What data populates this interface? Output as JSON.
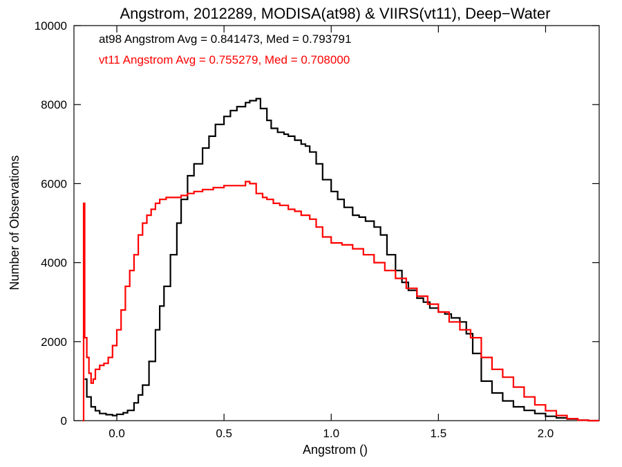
{
  "chart_data": {
    "type": "line",
    "title": "Angstrom, 2012289, MODISA(at98) & VIIRS(vt11), Deep−Water",
    "xlabel": "Angstrom ()",
    "ylabel": "Number of Observations",
    "xlim": [
      -0.2,
      2.25
    ],
    "ylim": [
      0,
      10000
    ],
    "x_ticks": [
      0.0,
      0.5,
      1.0,
      1.5,
      2.0
    ],
    "x_tick_labels": [
      "0.0",
      "0.5",
      "1.0",
      "1.5",
      "2.0"
    ],
    "y_ticks": [
      0,
      2000,
      4000,
      6000,
      8000,
      10000
    ],
    "y_tick_labels": [
      "0",
      "2000",
      "4000",
      "6000",
      "8000",
      "10000"
    ],
    "grid": false,
    "step": true,
    "legend_position": "top-left",
    "series": [
      {
        "name": "at98",
        "color": "#000000",
        "annotation": "at98 Angstrom Avg = 0.841473, Med = 0.793791",
        "x": [
          -0.15,
          -0.14,
          -0.12,
          -0.1,
          -0.08,
          -0.05,
          -0.02,
          0.0,
          0.03,
          0.05,
          0.08,
          0.1,
          0.12,
          0.15,
          0.18,
          0.2,
          0.22,
          0.25,
          0.28,
          0.3,
          0.33,
          0.36,
          0.4,
          0.43,
          0.46,
          0.5,
          0.53,
          0.56,
          0.6,
          0.62,
          0.65,
          0.67,
          0.7,
          0.72,
          0.75,
          0.78,
          0.8,
          0.83,
          0.86,
          0.88,
          0.9,
          0.93,
          0.96,
          1.0,
          1.03,
          1.06,
          1.1,
          1.13,
          1.16,
          1.2,
          1.23,
          1.26,
          1.3,
          1.33,
          1.36,
          1.4,
          1.43,
          1.46,
          1.5,
          1.53,
          1.56,
          1.6,
          1.63,
          1.66,
          1.7,
          1.75,
          1.8,
          1.85,
          1.9,
          1.95,
          2.0,
          2.05,
          2.1,
          2.15,
          2.2,
          2.25
        ],
        "y": [
          1050,
          600,
          350,
          250,
          180,
          150,
          130,
          160,
          200,
          260,
          450,
          650,
          900,
          1500,
          2300,
          2900,
          3400,
          4200,
          5000,
          5600,
          6200,
          6500,
          6900,
          7200,
          7500,
          7700,
          7850,
          7950,
          8050,
          8100,
          8150,
          7900,
          7600,
          7400,
          7300,
          7250,
          7200,
          7100,
          7000,
          6950,
          6800,
          6500,
          6100,
          5800,
          5600,
          5400,
          5200,
          5150,
          5050,
          4900,
          4700,
          4200,
          3800,
          3500,
          3300,
          3100,
          3000,
          2850,
          2750,
          2700,
          2600,
          2500,
          2200,
          1700,
          1000,
          700,
          500,
          350,
          260,
          180,
          110,
          70,
          40,
          10,
          0,
          0
        ]
      },
      {
        "name": "vt11",
        "color": "#ff0000",
        "annotation": "vt11 Angstrom Avg = 0.755279, Med = 0.708000",
        "x": [
          -0.16,
          -0.155,
          -0.15,
          -0.14,
          -0.13,
          -0.12,
          -0.11,
          -0.1,
          -0.08,
          -0.06,
          -0.04,
          -0.02,
          0.0,
          0.02,
          0.04,
          0.06,
          0.08,
          0.1,
          0.12,
          0.14,
          0.16,
          0.18,
          0.2,
          0.23,
          0.26,
          0.3,
          0.33,
          0.36,
          0.4,
          0.45,
          0.5,
          0.55,
          0.6,
          0.62,
          0.65,
          0.68,
          0.7,
          0.73,
          0.76,
          0.8,
          0.83,
          0.86,
          0.9,
          0.93,
          0.96,
          1.0,
          1.05,
          1.1,
          1.15,
          1.2,
          1.25,
          1.3,
          1.35,
          1.4,
          1.45,
          1.5,
          1.55,
          1.6,
          1.65,
          1.7,
          1.75,
          1.8,
          1.85,
          1.9,
          1.95,
          2.0,
          2.05,
          2.1,
          2.15,
          2.2,
          2.25
        ],
        "y": [
          0,
          5500,
          2100,
          1600,
          1200,
          950,
          1050,
          1300,
          1400,
          1450,
          1600,
          1900,
          2300,
          2800,
          3400,
          3800,
          4200,
          4700,
          5000,
          5200,
          5350,
          5500,
          5600,
          5650,
          5650,
          5700,
          5750,
          5800,
          5850,
          5900,
          5950,
          5950,
          6050,
          6000,
          5750,
          5650,
          5600,
          5500,
          5450,
          5350,
          5300,
          5200,
          5100,
          4900,
          4650,
          4500,
          4450,
          4350,
          4200,
          4000,
          3800,
          3600,
          3350,
          3150,
          2950,
          2750,
          2500,
          2300,
          2100,
          1600,
          1300,
          1100,
          850,
          600,
          400,
          250,
          130,
          50,
          10,
          0,
          0
        ]
      }
    ]
  }
}
